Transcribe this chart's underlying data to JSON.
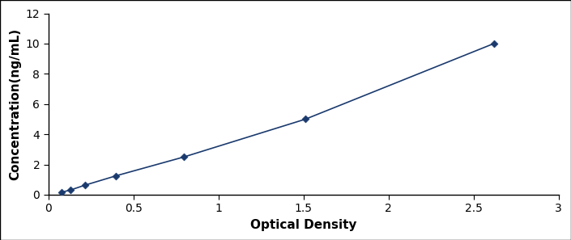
{
  "x_data": [
    0.076,
    0.131,
    0.214,
    0.398,
    0.798,
    1.512,
    2.619
  ],
  "y_data": [
    0.156,
    0.313,
    0.625,
    1.25,
    2.5,
    5.0,
    10.0
  ],
  "line_color": "#1a3a6e",
  "marker_color": "#1a3a6e",
  "marker_style": "D",
  "marker_size": 4.5,
  "line_width": 1.2,
  "xlabel": "Optical Density",
  "ylabel": "Concentration(ng/mL)",
  "xlim": [
    0,
    3
  ],
  "ylim": [
    0,
    12
  ],
  "xticks": [
    0,
    0.5,
    1,
    1.5,
    2,
    2.5,
    3
  ],
  "xtick_labels": [
    "0",
    "0.5",
    "1",
    "1.5",
    "2",
    "2.5",
    "3"
  ],
  "yticks": [
    0,
    2,
    4,
    6,
    8,
    10,
    12
  ],
  "xlabel_fontsize": 11,
  "ylabel_fontsize": 11,
  "tick_fontsize": 10,
  "background_color": "#ffffff",
  "figure_facecolor": "#ffffff",
  "border_color": "#000000"
}
